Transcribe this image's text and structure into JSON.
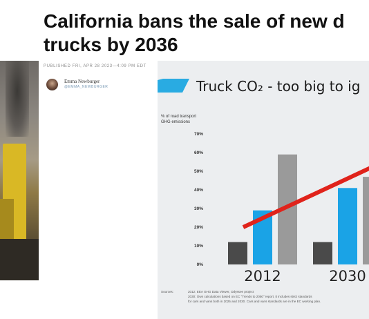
{
  "article": {
    "headline_line1": "California bans the sale of new d",
    "headline_line2": "trucks by 2036",
    "published": "PUBLISHED FRI, APR 28 2023—4:09 PM EDT",
    "author_name": "Emma Newburger",
    "author_handle": "@EMMA_NEWBURGER"
  },
  "colors": {
    "banner_blue": "#29abe2",
    "dark_bar": "#4a4a4a",
    "blue_bar": "#1aa3e6",
    "grey_bar": "#9a9a9a",
    "trend_red": "#e0231b"
  },
  "chart_data": {
    "type": "bar",
    "title": "Truck CO₂ - too big to ig",
    "ylabel": "% of road transport GHG emissions",
    "ylabel_lines": [
      "% of road transport",
      "GHG emissions"
    ],
    "ylim": [
      0,
      70
    ],
    "yticks": [
      "70%",
      "60%",
      "50%",
      "40%",
      "30%",
      "20%",
      "10%",
      "0%"
    ],
    "ytick_values": [
      70,
      60,
      50,
      40,
      30,
      20,
      10,
      0
    ],
    "categories": [
      "2012",
      "2030"
    ],
    "series": [
      {
        "values": [
          12,
          12
        ],
        "color": "#4a4a4a"
      },
      {
        "values": [
          29,
          41
        ],
        "color": "#1aa3e6"
      },
      {
        "values": [
          59,
          47
        ],
        "color": "#9a9a9a"
      }
    ],
    "trend_line": {
      "from": {
        "category": "2012",
        "value": 20
      },
      "to": {
        "category": "2030",
        "value": 53
      }
    },
    "sources_label": "Sources:",
    "sources_lines": [
      "2012: EEA GHG Data Viewer, Odyssee project",
      "2030: Own calculations based on EC \"Trends to 2050\" report. It includes strict standards",
      "for cars and vans both in 2025 and 2030. Cars and vans standards are in the EC working plan."
    ],
    "grid": false
  }
}
